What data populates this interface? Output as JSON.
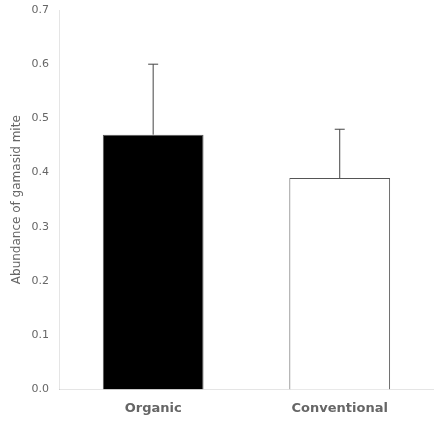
{
  "chart_data": {
    "type": "bar",
    "categories": [
      "Organic",
      "Conventional"
    ],
    "values": [
      0.47,
      0.39
    ],
    "errors_upper": [
      0.13,
      0.09
    ],
    "colors": [
      "#000000",
      "#ffffff"
    ],
    "ylabel": "Abundance of gamasid mite",
    "ylim": [
      0,
      0.7
    ],
    "yticks": [
      {
        "value": 0,
        "label": "0.0"
      },
      0.1,
      0.2,
      0.3,
      0.4,
      0.5,
      0.6,
      0.7
    ],
    "grid": false
  }
}
